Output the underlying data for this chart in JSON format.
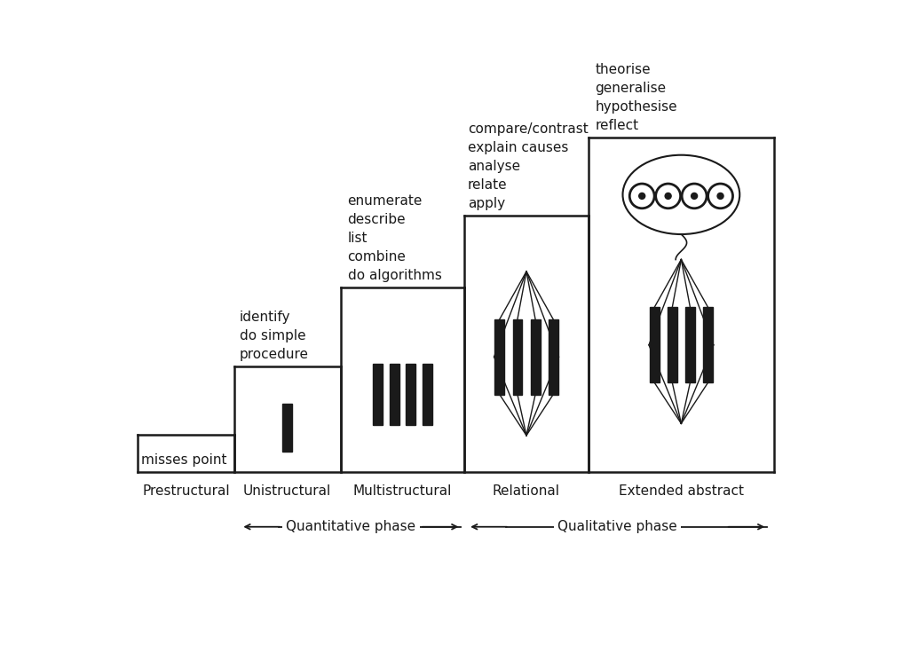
{
  "title_labels": [
    "Prestructural",
    "Unistructural",
    "Multistructural",
    "Relational",
    "Extended abstract"
  ],
  "step_labels": [
    "misses point",
    "identify\ndo simple\nprocedure",
    "enumerate\ndescribe\nlist\ncombine\ndo algorithms",
    "compare/contrast\nexplain causes\nanalyse\nrelate\napply",
    "theorise\ngeneralise\nhypothesise\nreflect"
  ],
  "bar_color": "#1a1a1a",
  "line_color": "#1a1a1a",
  "text_color": "#1a1a1a"
}
